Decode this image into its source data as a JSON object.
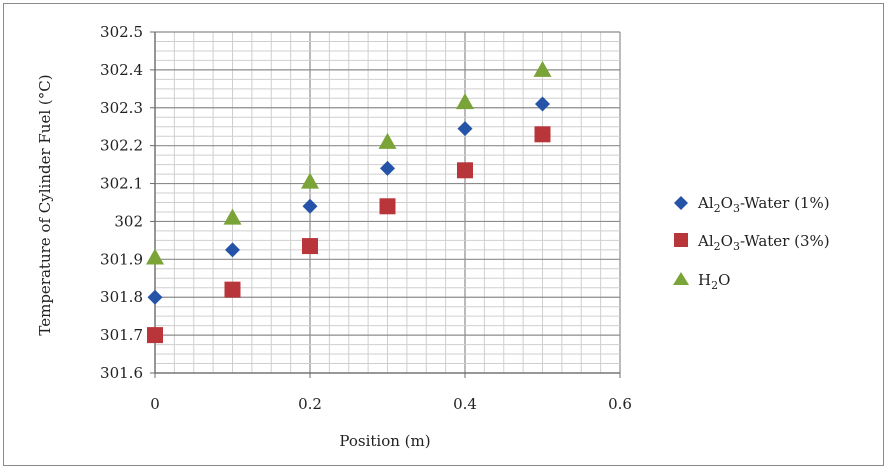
{
  "chart_data": {
    "type": "scatter",
    "title": "",
    "xlabel": "Position (m)",
    "ylabel": "Temperature of Cylinder Fuel (°C)",
    "xlim": [
      0,
      0.6
    ],
    "ylim": [
      301.6,
      302.5
    ],
    "x_ticks": [
      "0",
      "0.2",
      "0.4",
      "0.6"
    ],
    "y_ticks": [
      "302.5",
      "302.4",
      "302.3",
      "302.2",
      "302.1",
      "302",
      "301.9",
      "301.8",
      "301.7",
      "301.6"
    ],
    "grid": true,
    "legend_position": "right",
    "x": [
      0,
      0.1,
      0.2,
      0.3,
      0.4,
      0.5
    ],
    "series": [
      {
        "name": "Al2O3-Water (1%)",
        "marker": "diamond",
        "color": "#2553a8",
        "values": [
          301.8,
          301.925,
          302.04,
          302.14,
          302.245,
          302.31
        ]
      },
      {
        "name": "Al2O3-Water (3%)",
        "marker": "square",
        "color": "#b8363a",
        "values": [
          301.7,
          301.82,
          301.935,
          302.04,
          302.135,
          302.23
        ]
      },
      {
        "name": "H2O",
        "marker": "triangle",
        "color": "#7aa338",
        "values": [
          301.905,
          302.01,
          302.105,
          302.21,
          302.315,
          302.4
        ]
      }
    ]
  }
}
